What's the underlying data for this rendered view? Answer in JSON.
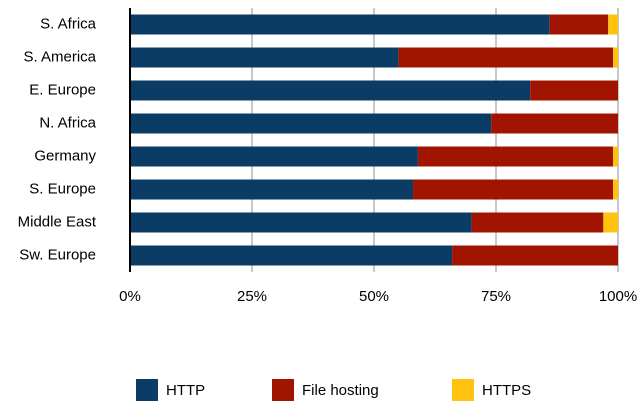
{
  "chart_data": {
    "type": "stacked_barh",
    "categories": [
      "S. Africa",
      "S. America",
      "E. Europe",
      "N. Africa",
      "Germany",
      "S. Europe",
      "Middle East",
      "Sw. Europe"
    ],
    "series": [
      {
        "name": "HTTP",
        "color": "#0b3c66",
        "values": [
          86,
          55,
          82,
          74,
          59,
          58,
          70,
          66
        ]
      },
      {
        "name": "File hosting",
        "color": "#a11500",
        "values": [
          12,
          44,
          18,
          26,
          40,
          41,
          27,
          34
        ]
      },
      {
        "name": "HTTPS",
        "color": "#ffc20e",
        "values": [
          2,
          1,
          0,
          0,
          1,
          1,
          3,
          0
        ]
      }
    ],
    "xlim": [
      0,
      100
    ],
    "xticks": [
      {
        "value": 0,
        "label": "0%"
      },
      {
        "value": 25,
        "label": "25%"
      },
      {
        "value": 50,
        "label": "50%"
      },
      {
        "value": 75,
        "label": "75%"
      },
      {
        "value": 100,
        "label": "100%"
      }
    ],
    "grid": true,
    "legend": "bottom"
  }
}
